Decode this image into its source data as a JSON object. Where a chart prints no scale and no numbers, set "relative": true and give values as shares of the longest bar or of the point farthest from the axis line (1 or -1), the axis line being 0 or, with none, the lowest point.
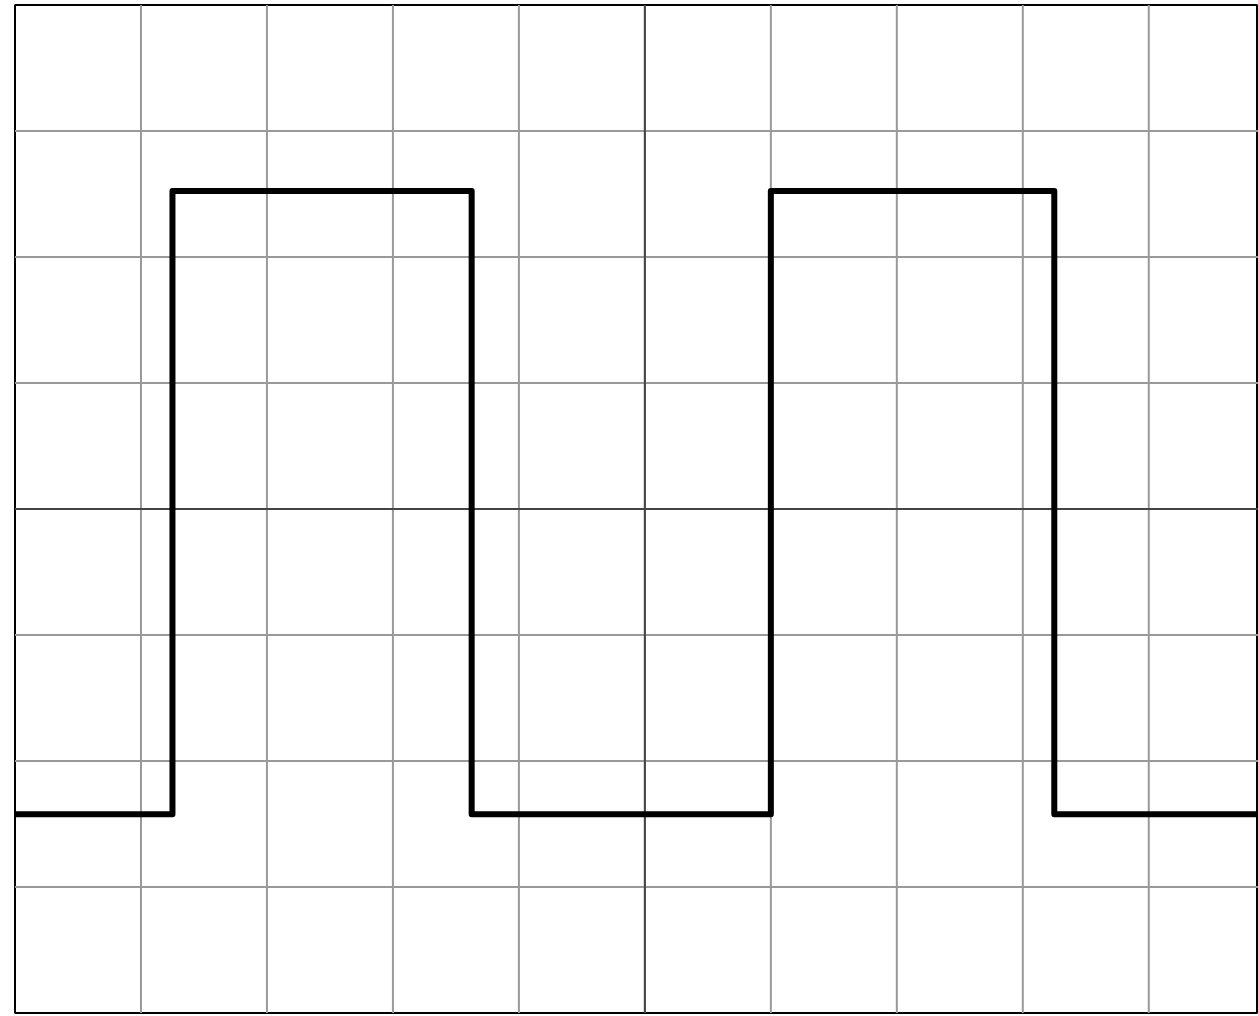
{
  "chart_data": {
    "type": "step",
    "relative": true,
    "grid": true,
    "color": "#000000",
    "line_style": "solid",
    "categories": [
      null,
      null,
      null,
      null,
      null,
      null,
      null,
      null,
      null,
      null,
      null,
      null,
      null,
      null,
      null,
      null,
      null,
      null,
      null,
      null,
      null,
      null,
      null,
      null,
      null,
      null,
      null,
      null,
      null,
      null,
      null,
      null,
      null,
      null,
      null,
      null,
      null,
      null,
      null,
      null,
      null,
      null,
      null,
      null,
      null,
      null,
      null,
      null,
      null,
      null,
      null,
      null,
      null,
      null,
      null,
      null,
      null,
      null,
      null,
      null,
      null,
      null,
      null,
      null,
      null,
      null,
      null,
      null,
      null,
      null,
      null,
      null,
      null,
      null,
      null,
      null,
      null,
      null,
      null,
      null
    ],
    "values": [
      -0.96,
      -0.96,
      -0.96,
      -0.96,
      -0.96,
      -0.96,
      -0.96,
      -0.96,
      -0.96,
      -0.96,
      1,
      1,
      1,
      1,
      1,
      1,
      1,
      1,
      1,
      1,
      1,
      1,
      1,
      1,
      1,
      1,
      1,
      1,
      1,
      -0.96,
      -0.96,
      -0.96,
      -0.96,
      -0.96,
      -0.96,
      -0.96,
      -0.96,
      -0.96,
      -0.96,
      -0.96,
      -0.96,
      -0.96,
      -0.96,
      -0.96,
      -0.96,
      -0.96,
      -0.96,
      -0.96,
      1,
      1,
      1,
      1,
      1,
      1,
      1,
      1,
      1,
      1,
      1,
      1,
      1,
      1,
      1,
      1,
      1,
      1,
      -0.96,
      -0.96,
      -0.96,
      -0.96,
      -0.96,
      -0.96,
      -0.96,
      -0.96,
      -0.96,
      -0.96,
      -0.96,
      -0.96,
      -0.96,
      -0.96
    ]
  }
}
